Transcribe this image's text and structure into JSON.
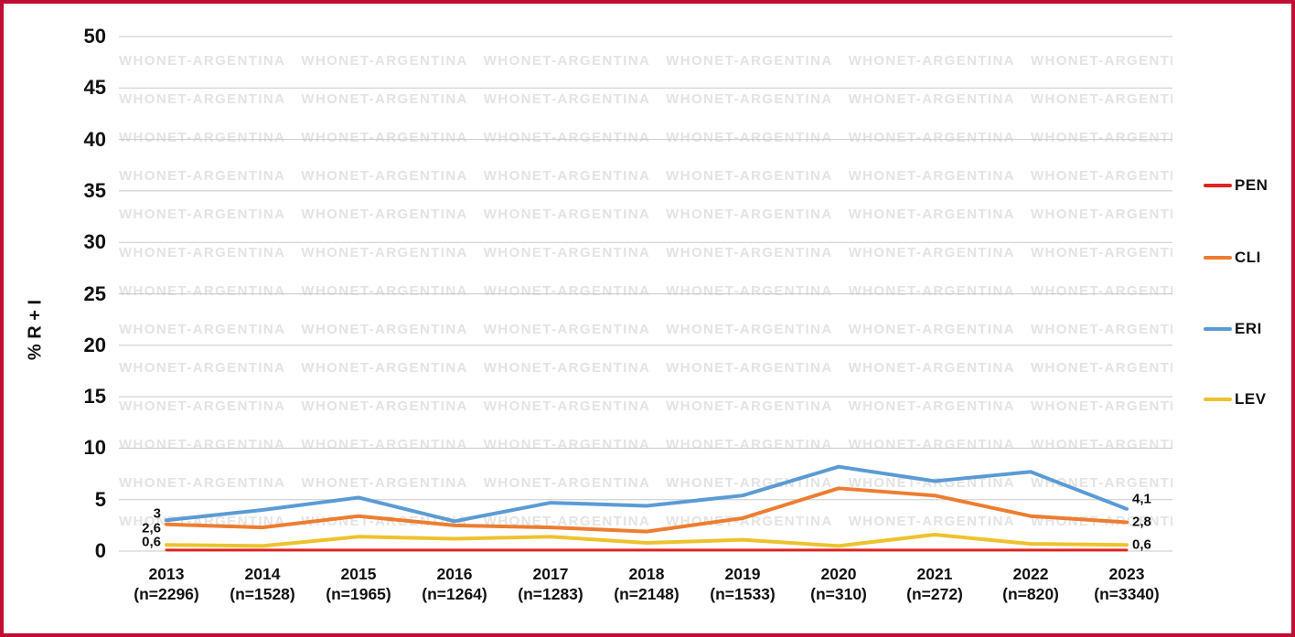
{
  "frame": {
    "border_color": "#c00d33"
  },
  "watermark": {
    "text": "WHONET-ARGENTINA"
  },
  "chart_data": {
    "type": "line",
    "title": "",
    "xlabel": "",
    "ylabel": "% R + I",
    "ylim": [
      0,
      50
    ],
    "ytick_step": 5,
    "grid": "horizontal-major",
    "grid_color": "#c8c8c8",
    "legend_position": "right-outside",
    "decimal_separator": ",",
    "categories": [
      "2013",
      "2014",
      "2015",
      "2016",
      "2017",
      "2018",
      "2019",
      "2020",
      "2021",
      "2022",
      "2023"
    ],
    "sample_sizes": [
      "(n=2296)",
      "(n=1528)",
      "(n=1965)",
      "(n=1264)",
      "(n=1283)",
      "(n=2148)",
      "(n=1533)",
      "(n=310)",
      "(n=272)",
      "(n=820)",
      "(n=3340)"
    ],
    "series": [
      {
        "name": "PEN",
        "color": "#e02320",
        "values": [
          0.1,
          0.1,
          0.1,
          0.1,
          0.1,
          0.1,
          0.1,
          0.1,
          0.1,
          0.1,
          0.1
        ]
      },
      {
        "name": "CLI",
        "color": "#ed7d31",
        "values": [
          2.6,
          2.3,
          3.4,
          2.5,
          2.3,
          1.9,
          3.2,
          6.1,
          5.4,
          3.4,
          2.8
        ]
      },
      {
        "name": "ERI",
        "color": "#5b9bd5",
        "values": [
          3,
          4,
          5.2,
          2.9,
          4.7,
          4.4,
          5.4,
          8.2,
          6.8,
          7.7,
          4.1
        ]
      },
      {
        "name": "LEV",
        "color": "#eec22d",
        "values": [
          0.6,
          0.5,
          1.4,
          1.2,
          1.4,
          0.8,
          1.1,
          0.5,
          1.6,
          0.7,
          0.6
        ]
      }
    ],
    "point_labels": {
      "start": [
        {
          "series": "ERI",
          "text": "3"
        },
        {
          "series": "CLI",
          "text": "2,6"
        },
        {
          "series": "LEV",
          "text": "0,6"
        }
      ],
      "end": [
        {
          "series": "ERI",
          "text": "4,1"
        },
        {
          "series": "CLI",
          "text": "2,8"
        },
        {
          "series": "LEV",
          "text": "0,6"
        }
      ]
    }
  }
}
